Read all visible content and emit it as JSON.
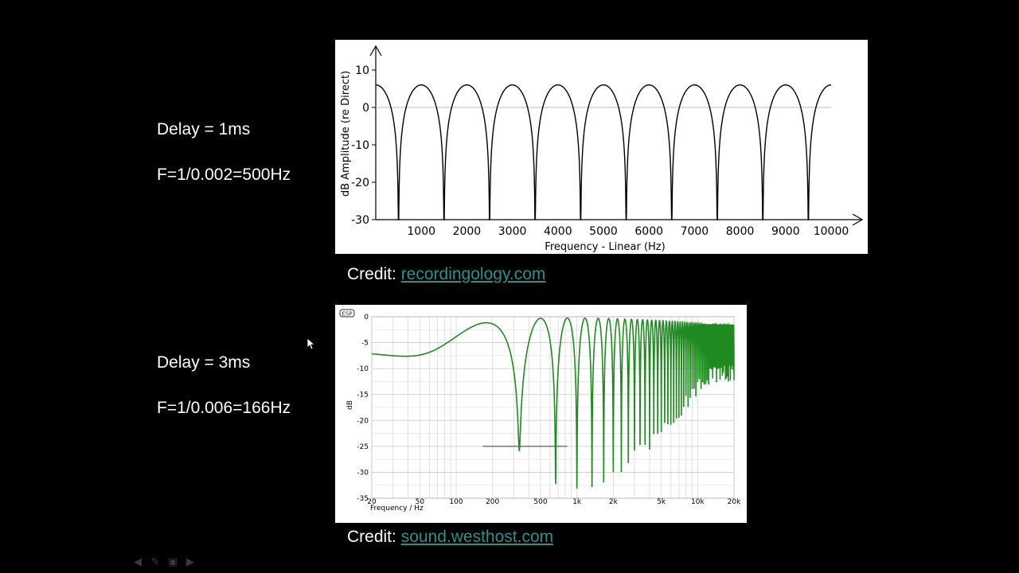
{
  "notes": {
    "delay1": "Delay = 1ms",
    "formula1": "F=1/0.002=500Hz",
    "delay2": "Delay = 3ms",
    "formula2": "F=1/0.006=166Hz"
  },
  "credits": [
    {
      "prefix": "Credit: ",
      "link": "recordingology.com"
    },
    {
      "prefix": "Credit: ",
      "link": "sound.westhost.com"
    }
  ],
  "colors": {
    "background": "#000000",
    "curve1": "#000000",
    "curve2": "#1f8a1f",
    "link": "#2f8f8a"
  },
  "icons": [
    "back-arrow-icon",
    "pen-icon",
    "slides-icon",
    "forward-arrow-icon"
  ],
  "chart_data": [
    {
      "type": "line",
      "title": "",
      "xlabel": "Frequency - Linear (Hz)",
      "ylabel": "dB Amplitude (re Direct)",
      "xscale": "linear",
      "xlim": [
        0,
        10000
      ],
      "ylim": [
        -30,
        10
      ],
      "xticks": [
        "1000",
        "2000",
        "3000",
        "4000",
        "5000",
        "6000",
        "7000",
        "8000",
        "9000",
        "10000"
      ],
      "yticks": [
        "10",
        "0",
        "-10",
        "-20",
        "-30"
      ],
      "comb_delay_ms": 1,
      "notch_frequencies_hz": [
        500,
        1500,
        2500,
        3500,
        4500,
        5500,
        6500,
        7500,
        8500,
        9500
      ],
      "peak_db": 6,
      "notch_db": -30,
      "reference_line_db": 0,
      "grid": false
    },
    {
      "type": "line",
      "title": "",
      "xlabel": "Frequency / Hz",
      "ylabel": "dB",
      "xscale": "log",
      "xlim": [
        20,
        20000
      ],
      "ylim": [
        -35,
        0
      ],
      "xticks": [
        "20",
        "50",
        "100",
        "200",
        "500",
        "1k",
        "2k",
        "5k",
        "10k",
        "20k"
      ],
      "yticks": [
        "0",
        "-5",
        "-10",
        "-15",
        "-20",
        "-25",
        "-30",
        "-35"
      ],
      "logo_text": "ESP",
      "notch_frequencies_hz": [
        166,
        500,
        833
      ],
      "notch_depths_db": [
        -28,
        -34,
        -26
      ],
      "high_frequency_level_db": -6.5,
      "grid": true
    }
  ]
}
